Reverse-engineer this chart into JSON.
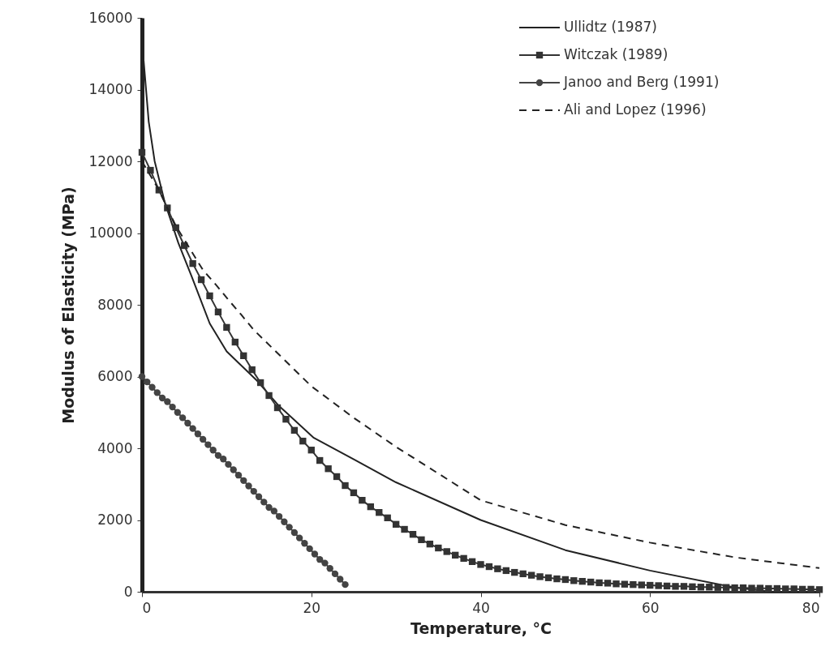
{
  "chart_data": {
    "type": "line",
    "xlabel": "Temperature, °C",
    "ylabel": "Modulus of Elasticity (MPa)",
    "xlim": [
      0,
      80
    ],
    "xticks": [
      0,
      20,
      40,
      60,
      80
    ],
    "ylim": [
      0,
      16000
    ],
    "yticks": [
      0,
      2000,
      4000,
      6000,
      8000,
      10000,
      12000,
      14000,
      16000
    ],
    "grid": false,
    "legend": "top right",
    "series": [
      {
        "name": "Ullidtz (1987)",
        "color": "#222222",
        "line_style": "solid",
        "marker": "none",
        "x": [
          0.2,
          0.8,
          1.5,
          2.7,
          4.3,
          5.9,
          8,
          10,
          13.6,
          16.1,
          20.3,
          25.1,
          30,
          40,
          50,
          60,
          70,
          74.4,
          80
        ],
        "values": [
          14800,
          13100,
          12000,
          10850,
          9720,
          8770,
          7480,
          6700,
          5880,
          5200,
          4290,
          3680,
          3050,
          2000,
          1160,
          590,
          120,
          0,
          0
        ]
      },
      {
        "name": "Witczak (1989)",
        "color": "#333333",
        "line_style": "solid",
        "marker": "square",
        "x": [
          0,
          1,
          2,
          3,
          4,
          5,
          6,
          7,
          8,
          9,
          10,
          11,
          12,
          13,
          14,
          15,
          16,
          17,
          18,
          19,
          20,
          21,
          22,
          23,
          24,
          25,
          26,
          27,
          28,
          29,
          30,
          31,
          32,
          33,
          34,
          35,
          36,
          37,
          38,
          39,
          40,
          41,
          42,
          43,
          44,
          45,
          46,
          47,
          48,
          49,
          50,
          51,
          52,
          53,
          54,
          55,
          56,
          57,
          58,
          59,
          60,
          61,
          62,
          63,
          64,
          65,
          66,
          67,
          68,
          69,
          70,
          71,
          72,
          73,
          74,
          75,
          76,
          77,
          78,
          79,
          80
        ],
        "values": [
          12250,
          11750,
          11200,
          10700,
          10150,
          9650,
          9150,
          8700,
          8250,
          7800,
          7370,
          6960,
          6580,
          6190,
          5830,
          5470,
          5130,
          4810,
          4500,
          4200,
          3950,
          3660,
          3430,
          3210,
          2960,
          2760,
          2550,
          2370,
          2210,
          2060,
          1880,
          1740,
          1600,
          1450,
          1330,
          1220,
          1120,
          1020,
          930,
          840,
          760,
          700,
          640,
          590,
          540,
          500,
          460,
          420,
          390,
          360,
          340,
          310,
          290,
          270,
          250,
          240,
          220,
          210,
          200,
          190,
          180,
          170,
          160,
          150,
          150,
          140,
          130,
          130,
          120,
          120,
          110,
          110,
          100,
          100,
          90,
          90,
          80,
          80,
          70,
          70,
          60
        ]
      },
      {
        "name": "Janoo and Berg (1991)",
        "color": "#444444",
        "line_style": "solid",
        "marker": "circle",
        "x": [
          0,
          0.6,
          1.2,
          1.8,
          2.4,
          3,
          3.6,
          4.2,
          4.8,
          5.4,
          6,
          6.6,
          7.2,
          7.8,
          8.4,
          9,
          9.6,
          10.2,
          10.8,
          11.4,
          12,
          12.6,
          13.2,
          13.8,
          14.4,
          15,
          15.6,
          16.2,
          16.8,
          17.4,
          18,
          18.6,
          19.2,
          19.8,
          20.4,
          21,
          21.6,
          22.2,
          22.8,
          23.4,
          24
        ],
        "values": [
          6000,
          5850,
          5700,
          5550,
          5400,
          5300,
          5150,
          5000,
          4850,
          4700,
          4550,
          4400,
          4250,
          4100,
          3950,
          3800,
          3700,
          3550,
          3400,
          3250,
          3100,
          2950,
          2800,
          2650,
          2500,
          2350,
          2250,
          2100,
          1950,
          1800,
          1650,
          1500,
          1350,
          1200,
          1050,
          900,
          800,
          650,
          500,
          350,
          200
        ]
      },
      {
        "name": "Ali and Lopez (1996)",
        "color": "#222222",
        "line_style": "dashed",
        "marker": "none",
        "x": [
          0,
          2,
          4,
          7.2,
          8.8,
          10.2,
          11.7,
          13.2,
          20,
          25,
          30,
          40,
          50,
          60,
          70,
          80
        ],
        "values": [
          12000,
          11200,
          10200,
          8970,
          8540,
          8140,
          7730,
          7300,
          5730,
          4850,
          4040,
          2550,
          1860,
          1370,
          960,
          660
        ]
      }
    ]
  }
}
